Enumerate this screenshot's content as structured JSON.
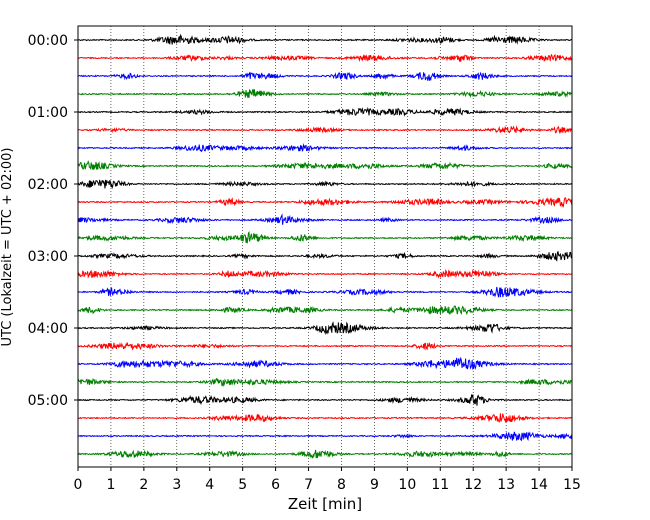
{
  "chart_data": {
    "type": "line",
    "title": "",
    "xlabel": "Zeit  [min]",
    "ylabel": "UTC (Lokalzeit = UTC + 02:00)",
    "xlim": [
      0,
      15
    ],
    "x_ticks": [
      "0",
      "1",
      "2",
      "3",
      "4",
      "5",
      "6",
      "7",
      "8",
      "9",
      "10",
      "11",
      "12",
      "13",
      "14",
      "15"
    ],
    "grid": "vertical dotted lines at each minute",
    "y_tick_labels": [
      "00:00",
      "01:00",
      "02:00",
      "03:00",
      "04:00",
      "05:00"
    ],
    "trace_interval_min": 15,
    "trace_count": 24,
    "colors": [
      "#000000",
      "#ff0000",
      "#0000ff",
      "#008000"
    ],
    "legend": "none"
  }
}
